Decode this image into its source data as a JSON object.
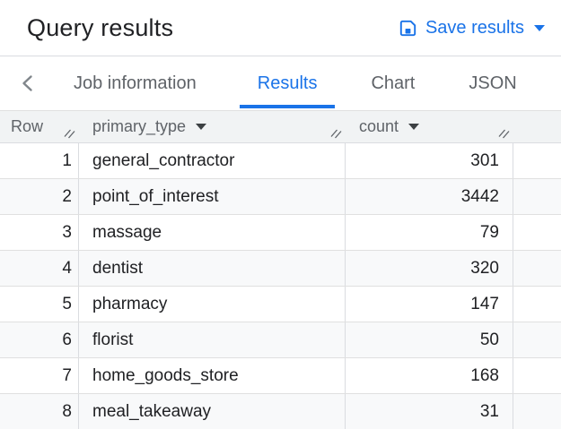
{
  "header": {
    "title": "Query results",
    "save_label": "Save results"
  },
  "tabs": {
    "items": [
      {
        "label": "Job information",
        "active": false
      },
      {
        "label": "Results",
        "active": true
      },
      {
        "label": "Chart",
        "active": false
      },
      {
        "label": "JSON",
        "active": false
      }
    ]
  },
  "table": {
    "columns": [
      {
        "label": "Row",
        "has_sort_menu": false
      },
      {
        "label": "primary_type",
        "has_sort_menu": true
      },
      {
        "label": "count",
        "has_sort_menu": true
      }
    ],
    "rows": [
      {
        "row": "1",
        "primary_type": "general_contractor",
        "count": "301"
      },
      {
        "row": "2",
        "primary_type": "point_of_interest",
        "count": "3442"
      },
      {
        "row": "3",
        "primary_type": "massage",
        "count": "79"
      },
      {
        "row": "4",
        "primary_type": "dentist",
        "count": "320"
      },
      {
        "row": "5",
        "primary_type": "pharmacy",
        "count": "147"
      },
      {
        "row": "6",
        "primary_type": "florist",
        "count": "50"
      },
      {
        "row": "7",
        "primary_type": "home_goods_store",
        "count": "168"
      },
      {
        "row": "8",
        "primary_type": "meal_takeaway",
        "count": "31"
      }
    ]
  },
  "icons": {
    "save": "save-icon",
    "save_caret": "caret-down-icon",
    "back": "chevron-left-icon",
    "sort": "sort-menu-caret-icon",
    "resize": "column-resize-handle-icon"
  },
  "colors": {
    "accent_blue": "#1a73e8",
    "text_dark": "#202124",
    "text_gray": "#5f6368",
    "header_bg": "#f1f3f4",
    "zebra_bg": "#f8f9fa",
    "border": "#e0e0e0"
  }
}
